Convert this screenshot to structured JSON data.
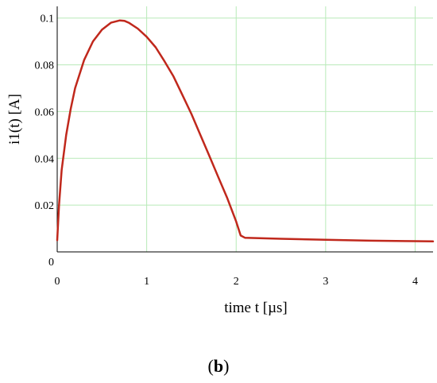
{
  "chart_data": {
    "type": "line",
    "xlabel": "time t [µs]",
    "ylabel": "i1(t) [A]",
    "xlim": [
      0,
      4.2
    ],
    "ylim": [
      0,
      0.105
    ],
    "x_ticks": [
      "0",
      "1",
      "2",
      "3",
      "4"
    ],
    "y_ticks": [
      "0",
      "0.02",
      "0.04",
      "0.06",
      "0.08",
      "0.1"
    ],
    "grid": true,
    "series": [
      {
        "name": "",
        "color": "#c0281c",
        "x": [
          0,
          0.02,
          0.05,
          0.1,
          0.15,
          0.2,
          0.3,
          0.4,
          0.5,
          0.6,
          0.7,
          0.75,
          0.8,
          0.9,
          1.0,
          1.1,
          1.2,
          1.3,
          1.4,
          1.5,
          1.6,
          1.7,
          1.8,
          1.9,
          2.0,
          2.05,
          2.1,
          2.3,
          2.5,
          3.0,
          3.5,
          4.0,
          4.2
        ],
        "y": [
          0.005,
          0.02,
          0.035,
          0.05,
          0.061,
          0.07,
          0.082,
          0.09,
          0.095,
          0.098,
          0.099,
          0.0988,
          0.098,
          0.0955,
          0.092,
          0.0875,
          0.0815,
          0.075,
          0.067,
          0.059,
          0.05,
          0.041,
          0.032,
          0.023,
          0.013,
          0.007,
          0.006,
          0.0058,
          0.0056,
          0.0052,
          0.0048,
          0.0046,
          0.0045
        ]
      }
    ]
  },
  "panel_label": "b"
}
